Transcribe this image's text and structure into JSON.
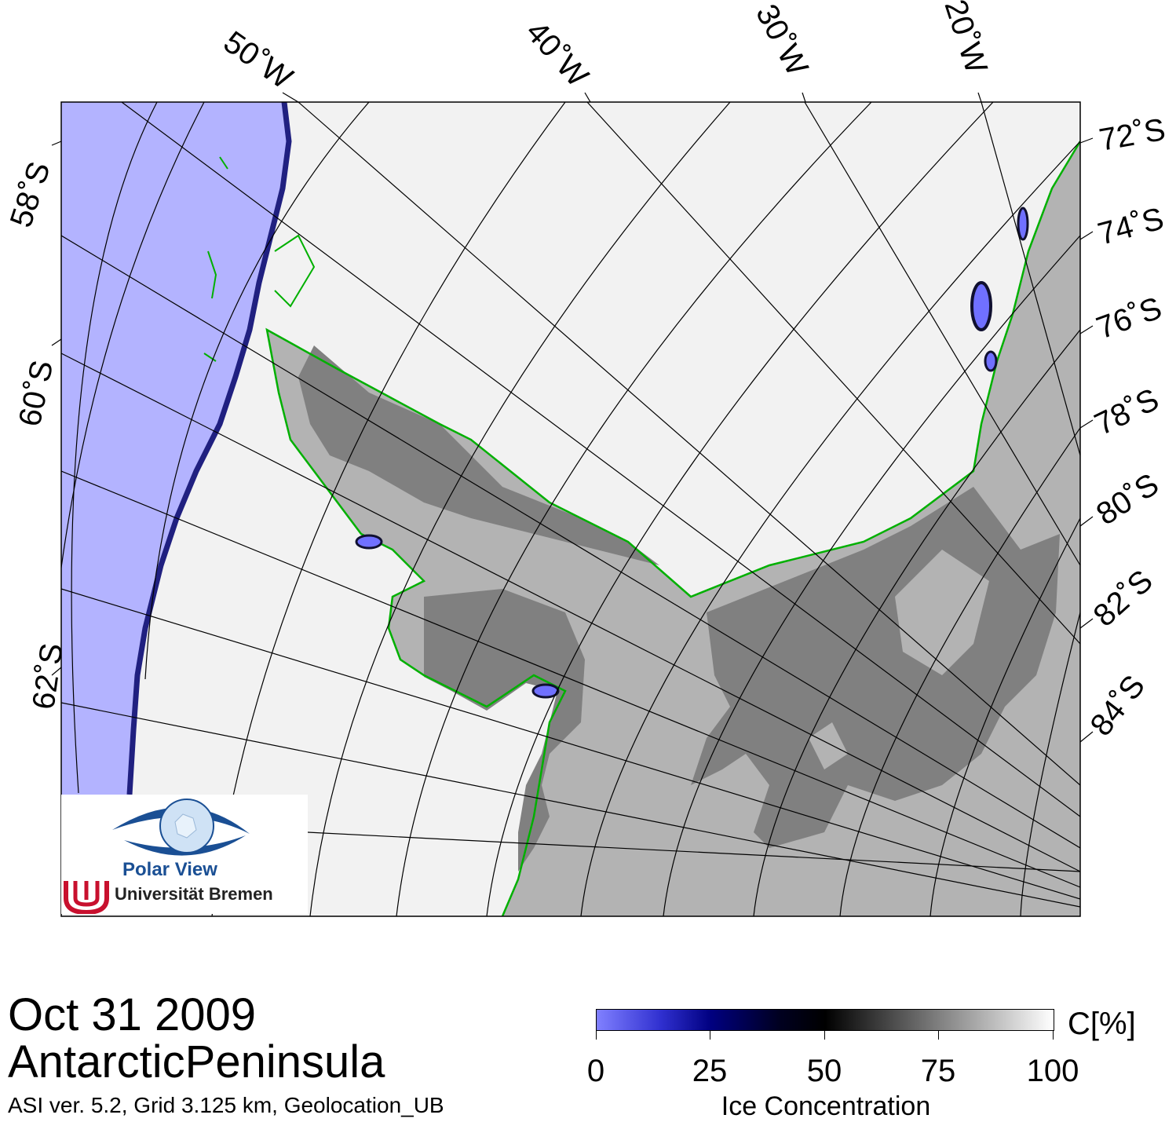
{
  "map": {
    "lon_labels": [
      "50˚W",
      "40˚W",
      "30˚W",
      "20˚W"
    ],
    "lat_labels_left": [
      "58˚S",
      "60˚S",
      "62˚S"
    ],
    "lat_labels_right": [
      "72˚S",
      "74˚S",
      "76˚S",
      "78˚S",
      "80˚S",
      "82˚S",
      "84˚S"
    ],
    "colors": {
      "open_water": "#b3b3ff",
      "land": "#b3b3b3",
      "ice_shelf": "#808080",
      "coast": "#00b000",
      "grid": "#000000"
    }
  },
  "title": {
    "date": "Oct 31 2009",
    "region": "AntarcticPeninsula",
    "info": "ASI ver. 5.2,  Grid 3.125 km, Geolocation_UB"
  },
  "colorbar": {
    "unit": "C[%]",
    "ticks": [
      "0",
      "25",
      "50",
      "75",
      "100"
    ],
    "label": "Ice Concentration"
  },
  "logo": {
    "name": "Polar View",
    "institution": "Universität Bremen",
    "icon": "eye-globe-icon",
    "uni_icon": "bremen-u-icon"
  }
}
